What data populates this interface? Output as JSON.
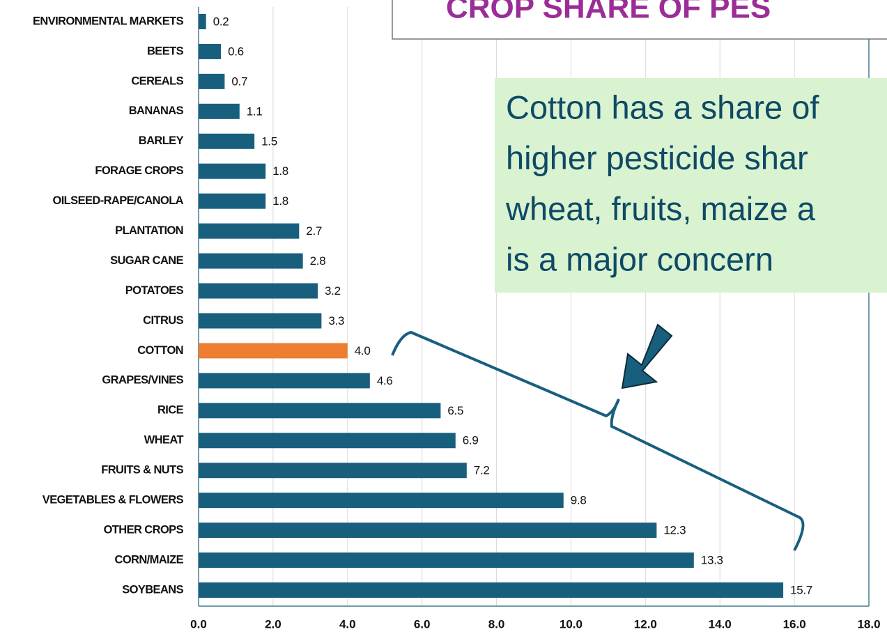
{
  "chart_data": {
    "type": "bar",
    "orientation": "horizontal",
    "title": "CROP SHARE OF PES",
    "annotation": [
      "Cotton has a share of",
      "higher pesticide shar",
      "wheat, fruits, maize a",
      "is a major concern"
    ],
    "categories": [
      "ENVIRONMENTAL MARKETS",
      "BEETS",
      "CEREALS",
      "BANANAS",
      "BARLEY",
      "FORAGE CROPS",
      "OILSEED-RAPE/CANOLA",
      "PLANTATION",
      "SUGAR CANE",
      "POTATOES",
      "CITRUS",
      "COTTON",
      "GRAPES/VINES",
      "RICE",
      "WHEAT",
      "FRUITS & NUTS",
      "VEGETABLES & FLOWERS",
      "OTHER CROPS",
      "CORN/MAIZE",
      "SOYBEANS"
    ],
    "values": [
      0.2,
      0.6,
      0.7,
      1.1,
      1.5,
      1.8,
      1.8,
      2.7,
      2.8,
      3.2,
      3.3,
      4,
      4.6,
      6.5,
      6.9,
      7.2,
      9.8,
      12.3,
      13.3,
      15.7
    ],
    "value_labels": [
      "0.2",
      "0.6",
      "0.7",
      "1.1",
      "1.5",
      "1.8",
      "1.8",
      "2.7",
      "2.8",
      "3.2",
      "3.3",
      "4.0",
      "4.6",
      "6.5",
      "6.9",
      "7.2",
      "9.8",
      "12.3",
      "13.3",
      "15.7"
    ],
    "colors": [
      "#185f7e",
      "#185f7e",
      "#185f7e",
      "#185f7e",
      "#185f7e",
      "#185f7e",
      "#185f7e",
      "#185f7e",
      "#185f7e",
      "#185f7e",
      "#185f7e",
      "#ed7d31",
      "#185f7e",
      "#185f7e",
      "#185f7e",
      "#185f7e",
      "#185f7e",
      "#185f7e",
      "#185f7e",
      "#185f7e"
    ],
    "xlim": [
      0,
      18
    ],
    "xticks": [
      {
        "value": 0,
        "label": "0.0"
      },
      {
        "value": 2,
        "label": "2.0"
      },
      {
        "value": 4,
        "label": "4.0"
      },
      {
        "value": 6,
        "label": "6.0"
      },
      {
        "value": 8,
        "label": "8.0"
      },
      {
        "value": 10,
        "label": "10.0"
      },
      {
        "value": 12,
        "label": "12.0"
      },
      {
        "value": 14,
        "label": "14.0"
      },
      {
        "value": 16,
        "label": "16.0"
      },
      {
        "value": 18,
        "label": "18.0"
      }
    ],
    "grid": true
  }
}
